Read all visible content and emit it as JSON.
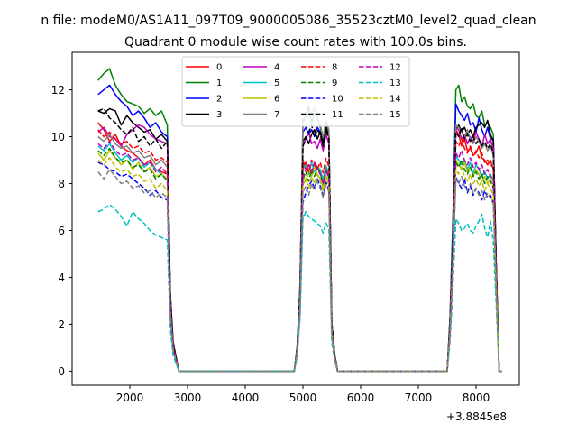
{
  "chart_data": {
    "type": "line",
    "suptitle": "n file: modeM0/AS1A11_097T09_9000005086_35523cztM0_level2_quad_clean",
    "title": "Quadrant 0 module wise count rates with 100.0s bins.",
    "xlabel": "",
    "ylabel": "",
    "x_offset_label": "+3.8845e8",
    "xlim": [
      1000,
      8750
    ],
    "ylim": [
      -0.6,
      13.6
    ],
    "xticks": [
      2000,
      3000,
      4000,
      5000,
      6000,
      7000,
      8000
    ],
    "yticks": [
      0,
      2,
      4,
      6,
      8,
      10,
      12
    ],
    "grid": false,
    "legend": {
      "placement": "top-center",
      "columns": 4
    },
    "x": [
      1450,
      1550,
      1650,
      1750,
      1850,
      1950,
      2050,
      2150,
      2250,
      2350,
      2450,
      2550,
      2650,
      2700,
      2750,
      2850,
      3000,
      3500,
      4000,
      4500,
      4850,
      4900,
      4950,
      5000,
      5050,
      5100,
      5150,
      5200,
      5250,
      5300,
      5350,
      5400,
      5450,
      5500,
      5550,
      5600,
      5700,
      6000,
      6500,
      7000,
      7500,
      7550,
      7600,
      7650,
      7700,
      7750,
      7800,
      7850,
      7900,
      7950,
      8000,
      8050,
      8100,
      8150,
      8200,
      8250,
      8300,
      8350,
      8400,
      8450
    ],
    "series": [
      {
        "name": "0",
        "color": "#ff0000",
        "dash": "solid",
        "active": [
          10.6,
          10.3,
          9.8,
          10.1,
          9.6,
          9.4,
          9.3,
          9.1,
          8.8,
          9.0,
          8.6,
          8.5,
          8.4
        ],
        "gap": [
          9.0,
          8.6,
          8.8,
          8.4,
          8.9,
          8.7,
          8.5
        ],
        "post": [
          10.3,
          10.1,
          9.6,
          9.9,
          9.4,
          9.5,
          9.2,
          9.3,
          9.6,
          9.1,
          9.0,
          8.8,
          9.0,
          8.6,
          4.0
        ]
      },
      {
        "name": "1",
        "color": "#008000",
        "dash": "solid",
        "active": [
          12.4,
          12.7,
          12.9,
          12.2,
          11.8,
          11.5,
          11.4,
          11.3,
          11.0,
          11.2,
          10.9,
          11.1,
          10.5
        ],
        "gap": [
          10.7,
          10.9,
          11.3,
          10.6,
          11.0,
          10.8,
          10.4
        ],
        "post": [
          12.0,
          12.2,
          11.5,
          11.7,
          11.3,
          11.2,
          11.4,
          10.9,
          10.8,
          11.1,
          10.5,
          10.6,
          10.4,
          10.1,
          4.4
        ]
      },
      {
        "name": "2",
        "color": "#0000ff",
        "dash": "solid",
        "active": [
          11.8,
          12.0,
          12.2,
          11.8,
          11.5,
          11.3,
          10.9,
          11.1,
          10.8,
          10.4,
          10.6,
          10.2,
          10.0
        ],
        "gap": [
          10.2,
          10.4,
          10.1,
          10.3,
          10.0,
          10.4,
          10.2
        ],
        "post": [
          11.4,
          11.1,
          10.9,
          10.7,
          11.0,
          10.5,
          10.6,
          10.2,
          10.8,
          10.3,
          10.0,
          10.4,
          9.9,
          9.9,
          4.6
        ]
      },
      {
        "name": "3",
        "color": "#000000",
        "dash": "solid",
        "active": [
          11.1,
          11.0,
          11.2,
          11.1,
          10.5,
          10.9,
          10.6,
          10.4,
          10.2,
          10.3,
          9.9,
          10.1,
          9.8
        ],
        "gap": [
          9.8,
          10.0,
          9.7,
          10.1,
          10.3,
          9.9,
          10.2
        ],
        "post": [
          10.3,
          10.5,
          10.2,
          10.4,
          10.1,
          10.3,
          10.0,
          10.4,
          10.5,
          10.6,
          10.4,
          10.7,
          10.1,
          9.8,
          4.5
        ]
      },
      {
        "name": "4",
        "color": "#bf00bf",
        "dash": "solid",
        "active": [
          10.2,
          10.4,
          10.0,
          9.9,
          9.6,
          10.1,
          10.3,
          10.5,
          10.4,
          10.1,
          9.9,
          9.8,
          9.7
        ],
        "gap": [
          9.6,
          9.9,
          10.2,
          9.7,
          9.8,
          9.5,
          9.9
        ],
        "post": [
          10.4,
          10.3,
          9.9,
          10.1,
          9.7,
          10.0,
          9.8,
          10.2,
          9.9,
          9.6,
          10.1,
          9.7,
          9.9,
          9.5,
          4.3
        ]
      },
      {
        "name": "5",
        "color": "#00bfbf",
        "dash": "solid",
        "active": [
          9.6,
          9.4,
          9.7,
          9.3,
          9.0,
          9.2,
          8.9,
          9.1,
          8.7,
          8.9,
          8.6,
          8.4,
          8.2
        ],
        "gap": [
          8.6,
          8.8,
          8.4,
          8.9,
          8.5,
          8.7,
          8.6
        ],
        "post": [
          9.2,
          9.0,
          8.8,
          9.0,
          8.6,
          8.9,
          8.4,
          8.8,
          8.6,
          8.3,
          8.5,
          8.2,
          8.4,
          8.1,
          3.9
        ]
      },
      {
        "name": "6",
        "color": "#bfbf00",
        "dash": "solid",
        "active": [
          9.3,
          9.0,
          9.4,
          9.1,
          8.8,
          9.0,
          8.6,
          8.9,
          8.5,
          8.7,
          8.3,
          8.4,
          8.2
        ],
        "gap": [
          8.4,
          8.1,
          8.6,
          8.3,
          8.7,
          8.4,
          8.2
        ],
        "post": [
          9.0,
          8.8,
          8.6,
          8.9,
          8.5,
          8.7,
          8.3,
          8.6,
          8.4,
          8.1,
          8.3,
          8.0,
          8.2,
          7.9,
          3.8
        ]
      },
      {
        "name": "7",
        "color": "#808080",
        "dash": "solid",
        "active": [
          10.0,
          9.8,
          10.1,
          9.7,
          9.5,
          9.6,
          9.3,
          9.4,
          9.1,
          9.2,
          8.8,
          9.0,
          8.7
        ],
        "gap": [
          10.6,
          10.9,
          11.1,
          11.0,
          11.2,
          10.8,
          10.5
        ],
        "post": [
          10.5,
          10.4,
          10.2,
          10.0,
          10.3,
          9.9,
          9.7,
          10.0,
          9.8,
          9.5,
          9.7,
          9.4,
          9.6,
          9.2,
          4.2
        ]
      },
      {
        "name": "8",
        "color": "#ff0000",
        "dash": "dashed",
        "active": [
          10.3,
          10.0,
          10.2,
          9.9,
          9.7,
          9.8,
          9.5,
          9.6,
          9.3,
          9.4,
          9.0,
          9.1,
          8.9
        ],
        "gap": [
          8.7,
          8.9,
          8.5,
          9.0,
          8.8,
          8.6,
          8.9
        ],
        "post": [
          9.8,
          9.6,
          9.9,
          9.5,
          9.3,
          9.6,
          9.2,
          9.4,
          9.1,
          9.3,
          8.9,
          9.0,
          8.8,
          8.7,
          4.1
        ]
      },
      {
        "name": "9",
        "color": "#008000",
        "dash": "dashed",
        "active": [
          9.4,
          9.2,
          9.5,
          9.1,
          8.9,
          9.0,
          8.7,
          8.8,
          8.5,
          8.6,
          8.2,
          8.4,
          8.1
        ],
        "gap": [
          8.2,
          8.5,
          8.1,
          8.6,
          8.3,
          8.7,
          8.4
        ],
        "post": [
          8.9,
          8.7,
          9.0,
          8.6,
          8.4,
          8.7,
          8.3,
          8.5,
          8.2,
          8.4,
          8.0,
          8.3,
          8.1,
          7.8,
          3.7
        ]
      },
      {
        "name": "10",
        "color": "#0000ff",
        "dash": "dashed",
        "active": [
          8.9,
          8.8,
          8.6,
          8.5,
          8.3,
          8.4,
          8.2,
          8.0,
          7.8,
          7.5,
          7.7,
          7.4,
          7.3
        ],
        "gap": [
          7.2,
          7.6,
          7.9,
          8.1,
          7.8,
          8.2,
          7.9
        ],
        "post": [
          8.3,
          8.0,
          7.8,
          8.2,
          7.6,
          7.9,
          7.5,
          7.8,
          7.6,
          7.3,
          7.7,
          7.4,
          7.5,
          7.2,
          3.5
        ]
      },
      {
        "name": "11",
        "color": "#000000",
        "dash": "dashed",
        "active": [
          11.1,
          11.2,
          10.8,
          10.6,
          10.3,
          10.1,
          10.4,
          9.8,
          10.0,
          9.6,
          9.9,
          9.5,
          9.8
        ],
        "gap": [
          9.6,
          9.9,
          10.2,
          10.5,
          10.0,
          10.3,
          10.1
        ],
        "post": [
          10.2,
          10.0,
          10.4,
          9.9,
          10.1,
          9.8,
          10.0,
          9.7,
          9.9,
          9.6,
          9.8,
          9.5,
          9.7,
          9.3,
          4.4
        ]
      },
      {
        "name": "12",
        "color": "#bf00bf",
        "dash": "dashed",
        "active": [
          9.7,
          9.5,
          9.8,
          9.4,
          9.2,
          9.3,
          9.0,
          9.1,
          8.8,
          8.9,
          8.5,
          8.7,
          8.4
        ],
        "gap": [
          8.3,
          8.6,
          8.8,
          8.5,
          8.9,
          8.6,
          8.4
        ],
        "post": [
          9.3,
          9.1,
          9.4,
          9.0,
          8.8,
          9.1,
          8.7,
          8.9,
          8.6,
          8.8,
          8.4,
          8.6,
          8.3,
          8.2,
          3.9
        ]
      },
      {
        "name": "13",
        "color": "#00bfbf",
        "dash": "dashed",
        "active": [
          6.8,
          6.9,
          7.1,
          6.9,
          6.6,
          6.2,
          6.8,
          6.5,
          6.3,
          6.0,
          5.8,
          5.7,
          5.6
        ],
        "gap": [
          6.5,
          6.8,
          6.6,
          6.5,
          6.4,
          6.3,
          6.2
        ],
        "post": [
          6.5,
          6.3,
          6.0,
          6.1,
          6.3,
          6.0,
          5.9,
          6.2,
          6.4,
          6.7,
          6.1,
          5.7,
          6.4,
          5.5,
          2.8
        ]
      },
      {
        "name": "14",
        "color": "#bfbf00",
        "dash": "dashed",
        "active": [
          9.0,
          8.8,
          9.1,
          8.7,
          8.5,
          8.6,
          8.3,
          8.4,
          8.1,
          8.2,
          7.8,
          8.0,
          7.7
        ],
        "gap": [
          7.9,
          8.2,
          7.8,
          8.3,
          8.0,
          8.4,
          8.1
        ],
        "post": [
          8.6,
          8.4,
          8.7,
          8.3,
          8.1,
          8.4,
          8.0,
          8.2,
          7.9,
          8.1,
          7.7,
          8.0,
          7.8,
          7.5,
          3.6
        ]
      },
      {
        "name": "15",
        "color": "#808080",
        "dash": "dashed",
        "active": [
          8.5,
          8.2,
          8.6,
          8.3,
          8.0,
          8.1,
          7.8,
          7.9,
          7.6,
          7.7,
          7.4,
          7.6,
          7.4
        ],
        "gap": [
          7.6,
          7.9,
          7.5,
          8.0,
          7.7,
          8.1,
          7.8
        ],
        "post": [
          8.2,
          8.0,
          8.3,
          7.9,
          7.7,
          8.0,
          7.6,
          7.8,
          7.5,
          7.7,
          7.3,
          7.6,
          7.4,
          7.1,
          3.4
        ]
      }
    ]
  }
}
